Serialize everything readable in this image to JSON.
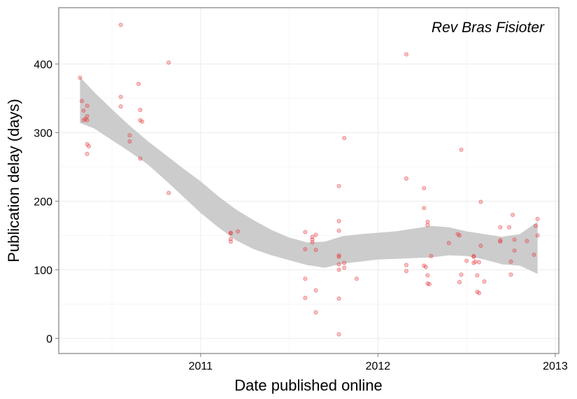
{
  "chart_data": {
    "type": "scatter",
    "title": "Rev Bras Fisioter",
    "xlabel": "Date published online",
    "ylabel": "Publication delay (days)",
    "xlim": [
      2010.2,
      2013.02
    ],
    "ylim": [
      -22,
      482
    ],
    "x_ticks": [
      2011,
      2012,
      2013
    ],
    "x_tick_labels": [
      "2011",
      "2012",
      "2013"
    ],
    "y_ticks": [
      0,
      100,
      200,
      300,
      400
    ],
    "y_tick_labels": [
      "0",
      "100",
      "200",
      "300",
      "400"
    ],
    "grid": true,
    "legend": "none",
    "colors": {
      "points": "#e8383d",
      "band": "#c8c8c8",
      "grid_major": "#ebebeb",
      "grid_minor": "#f5f5f5",
      "frame": "#7f7f7f"
    },
    "points": [
      {
        "x": 2010.32,
        "y": 380
      },
      {
        "x": 2010.33,
        "y": 346
      },
      {
        "x": 2010.34,
        "y": 332
      },
      {
        "x": 2010.34,
        "y": 318
      },
      {
        "x": 2010.35,
        "y": 320
      },
      {
        "x": 2010.36,
        "y": 339
      },
      {
        "x": 2010.36,
        "y": 324
      },
      {
        "x": 2010.36,
        "y": 318
      },
      {
        "x": 2010.36,
        "y": 283
      },
      {
        "x": 2010.36,
        "y": 269
      },
      {
        "x": 2010.37,
        "y": 280
      },
      {
        "x": 2010.55,
        "y": 457
      },
      {
        "x": 2010.55,
        "y": 352
      },
      {
        "x": 2010.55,
        "y": 338
      },
      {
        "x": 2010.6,
        "y": 296
      },
      {
        "x": 2010.6,
        "y": 287
      },
      {
        "x": 2010.65,
        "y": 371
      },
      {
        "x": 2010.66,
        "y": 333
      },
      {
        "x": 2010.66,
        "y": 318
      },
      {
        "x": 2010.67,
        "y": 316
      },
      {
        "x": 2010.66,
        "y": 262
      },
      {
        "x": 2010.82,
        "y": 402
      },
      {
        "x": 2010.82,
        "y": 212
      },
      {
        "x": 2011.17,
        "y": 154
      },
      {
        "x": 2011.17,
        "y": 153
      },
      {
        "x": 2011.17,
        "y": 145
      },
      {
        "x": 2011.17,
        "y": 141
      },
      {
        "x": 2011.21,
        "y": 156
      },
      {
        "x": 2011.59,
        "y": 155
      },
      {
        "x": 2011.59,
        "y": 130
      },
      {
        "x": 2011.59,
        "y": 87
      },
      {
        "x": 2011.59,
        "y": 59
      },
      {
        "x": 2011.63,
        "y": 148
      },
      {
        "x": 2011.63,
        "y": 144
      },
      {
        "x": 2011.63,
        "y": 140
      },
      {
        "x": 2011.65,
        "y": 151
      },
      {
        "x": 2011.65,
        "y": 129
      },
      {
        "x": 2011.65,
        "y": 70
      },
      {
        "x": 2011.65,
        "y": 38
      },
      {
        "x": 2011.78,
        "y": 222
      },
      {
        "x": 2011.78,
        "y": 171
      },
      {
        "x": 2011.78,
        "y": 157
      },
      {
        "x": 2011.78,
        "y": 121
      },
      {
        "x": 2011.78,
        "y": 119
      },
      {
        "x": 2011.78,
        "y": 108
      },
      {
        "x": 2011.78,
        "y": 100
      },
      {
        "x": 2011.78,
        "y": 58
      },
      {
        "x": 2011.78,
        "y": 6
      },
      {
        "x": 2011.81,
        "y": 292
      },
      {
        "x": 2011.81,
        "y": 110
      },
      {
        "x": 2011.81,
        "y": 103
      },
      {
        "x": 2011.88,
        "y": 87
      },
      {
        "x": 2012.16,
        "y": 414
      },
      {
        "x": 2012.16,
        "y": 233
      },
      {
        "x": 2012.16,
        "y": 107
      },
      {
        "x": 2012.16,
        "y": 98
      },
      {
        "x": 2012.26,
        "y": 219
      },
      {
        "x": 2012.26,
        "y": 190
      },
      {
        "x": 2012.26,
        "y": 106
      },
      {
        "x": 2012.27,
        "y": 104
      },
      {
        "x": 2012.28,
        "y": 170
      },
      {
        "x": 2012.28,
        "y": 165
      },
      {
        "x": 2012.28,
        "y": 92
      },
      {
        "x": 2012.28,
        "y": 80
      },
      {
        "x": 2012.29,
        "y": 79
      },
      {
        "x": 2012.3,
        "y": 120
      },
      {
        "x": 2012.4,
        "y": 139
      },
      {
        "x": 2012.45,
        "y": 152
      },
      {
        "x": 2012.46,
        "y": 150
      },
      {
        "x": 2012.46,
        "y": 82
      },
      {
        "x": 2012.47,
        "y": 275
      },
      {
        "x": 2012.47,
        "y": 93
      },
      {
        "x": 2012.5,
        "y": 113
      },
      {
        "x": 2012.54,
        "y": 120
      },
      {
        "x": 2012.54,
        "y": 119
      },
      {
        "x": 2012.54,
        "y": 110
      },
      {
        "x": 2012.55,
        "y": 112
      },
      {
        "x": 2012.56,
        "y": 92
      },
      {
        "x": 2012.56,
        "y": 68
      },
      {
        "x": 2012.57,
        "y": 66
      },
      {
        "x": 2012.57,
        "y": 111
      },
      {
        "x": 2012.58,
        "y": 135
      },
      {
        "x": 2012.58,
        "y": 199
      },
      {
        "x": 2012.6,
        "y": 83
      },
      {
        "x": 2012.69,
        "y": 162
      },
      {
        "x": 2012.69,
        "y": 143
      },
      {
        "x": 2012.69,
        "y": 141
      },
      {
        "x": 2012.74,
        "y": 162
      },
      {
        "x": 2012.75,
        "y": 112
      },
      {
        "x": 2012.75,
        "y": 93
      },
      {
        "x": 2012.76,
        "y": 180
      },
      {
        "x": 2012.77,
        "y": 144
      },
      {
        "x": 2012.77,
        "y": 128
      },
      {
        "x": 2012.84,
        "y": 142
      },
      {
        "x": 2012.88,
        "y": 122
      },
      {
        "x": 2012.89,
        "y": 164
      },
      {
        "x": 2012.9,
        "y": 174
      },
      {
        "x": 2012.9,
        "y": 150
      }
    ],
    "smooth_band": {
      "x": [
        2010.32,
        2010.4,
        2010.5,
        2010.6,
        2010.7,
        2010.8,
        2010.9,
        2011.0,
        2011.1,
        2011.2,
        2011.3,
        2011.4,
        2011.5,
        2011.6,
        2011.7,
        2011.8,
        2011.9,
        2012.0,
        2012.1,
        2012.2,
        2012.3,
        2012.4,
        2012.5,
        2012.6,
        2012.7,
        2012.8,
        2012.9
      ],
      "lower": [
        314,
        306,
        289,
        272,
        254,
        231,
        207,
        183,
        162,
        143,
        130,
        121,
        114,
        107,
        103,
        109,
        112,
        115,
        116,
        117,
        118,
        121,
        120,
        115,
        108,
        106,
        94
      ],
      "upper": [
        381,
        359,
        334,
        310,
        288,
        268,
        248,
        229,
        207,
        188,
        172,
        158,
        147,
        140,
        141,
        149,
        152,
        154,
        156,
        160,
        164,
        162,
        156,
        152,
        148,
        152,
        170
      ]
    }
  }
}
